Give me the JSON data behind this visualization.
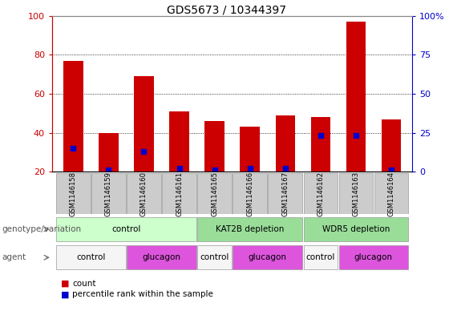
{
  "title": "GDS5673 / 10344397",
  "samples": [
    "GSM1146158",
    "GSM1146159",
    "GSM1146160",
    "GSM1146161",
    "GSM1146165",
    "GSM1146166",
    "GSM1146167",
    "GSM1146162",
    "GSM1146163",
    "GSM1146164"
  ],
  "counts": [
    77,
    40,
    69,
    51,
    46,
    43,
    49,
    48,
    97,
    47
  ],
  "percentiles": [
    15,
    1,
    13,
    2,
    1,
    2,
    2,
    23,
    23,
    1
  ],
  "bar_bottom": 20,
  "ylim_left": [
    20,
    100
  ],
  "ylim_right": [
    0,
    100
  ],
  "yticks_left": [
    20,
    40,
    60,
    80,
    100
  ],
  "yticks_right": [
    0,
    25,
    50,
    75,
    100
  ],
  "ytick_labels_right": [
    "0",
    "25",
    "50",
    "75",
    "100%"
  ],
  "bar_color": "#cc0000",
  "percentile_color": "#0000cc",
  "genotype_groups": [
    {
      "label": "control",
      "start": 0,
      "end": 3,
      "color": "#ccffcc"
    },
    {
      "label": "KAT2B depletion",
      "start": 4,
      "end": 6,
      "color": "#99dd99"
    },
    {
      "label": "WDR5 depletion",
      "start": 7,
      "end": 9,
      "color": "#99dd99"
    }
  ],
  "agent_groups": [
    {
      "label": "control",
      "start": 0,
      "end": 1,
      "color": "#f0f0f0"
    },
    {
      "label": "glucagon",
      "start": 2,
      "end": 3,
      "color": "#ee66ee"
    },
    {
      "label": "control",
      "start": 4,
      "end": 4,
      "color": "#f0f0f0"
    },
    {
      "label": "glucagon",
      "start": 5,
      "end": 6,
      "color": "#ee66ee"
    },
    {
      "label": "control",
      "start": 7,
      "end": 7,
      "color": "#f0f0f0"
    },
    {
      "label": "glucagon",
      "start": 8,
      "end": 9,
      "color": "#ee66ee"
    }
  ],
  "xlabel_genotype": "genotype/variation",
  "xlabel_agent": "agent",
  "legend_count": "count",
  "legend_percentile": "percentile rank within the sample",
  "sample_bg_color": "#cccccc",
  "left_axis_color": "#cc0000",
  "right_axis_color": "#0000cc"
}
